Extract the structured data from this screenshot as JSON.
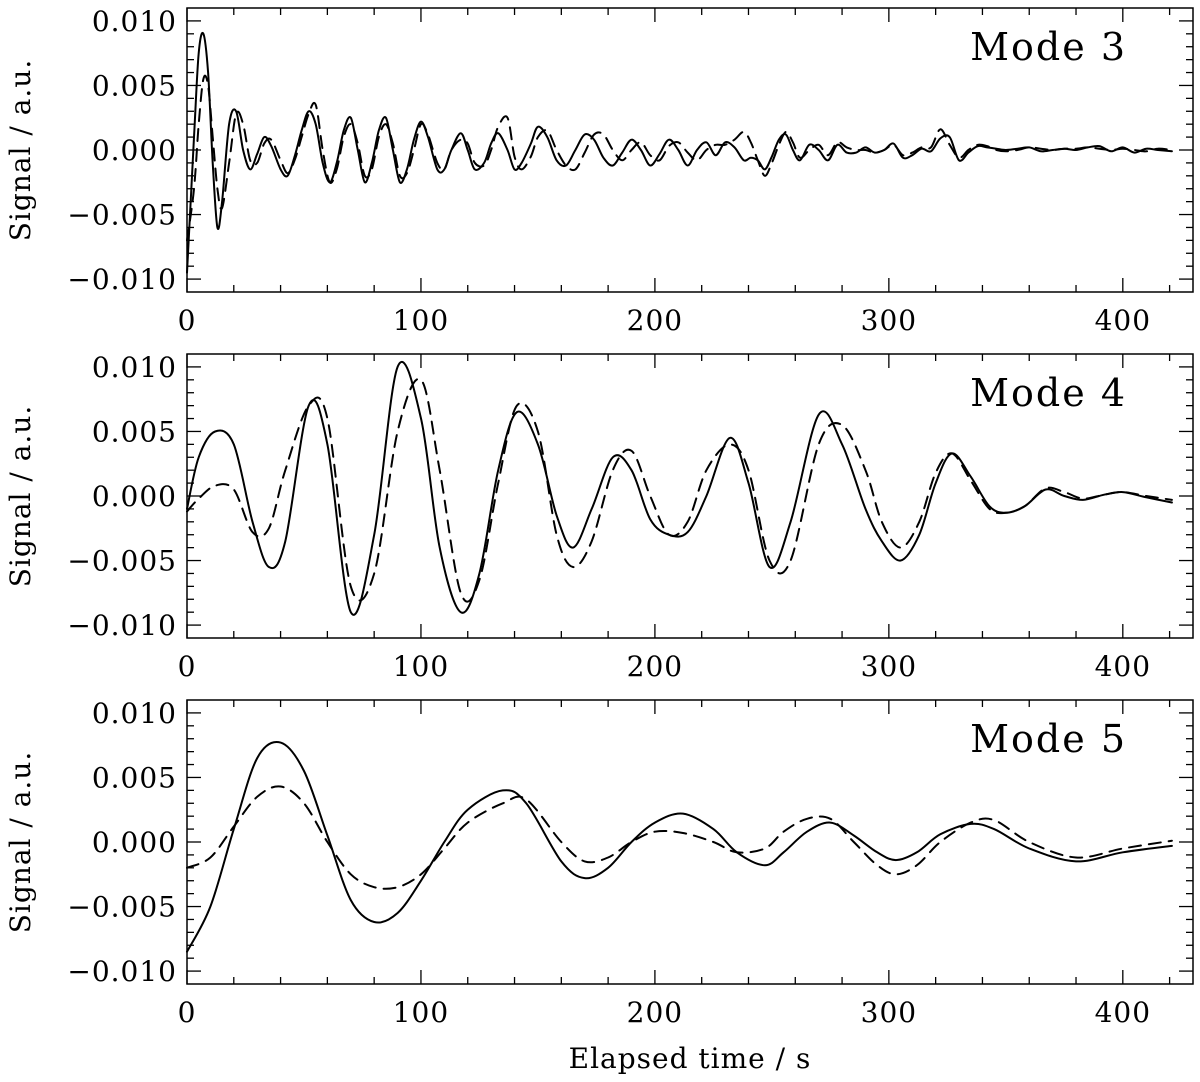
{
  "chart_data": [
    {
      "type": "line",
      "annotation": "Mode 3",
      "xlabel": "",
      "ylabel": "Signal / a.u.",
      "xlim": [
        0,
        430
      ],
      "ylim": [
        -0.011,
        0.011
      ],
      "x_ticks": [
        0,
        100,
        200,
        300,
        400
      ],
      "x_tick_labels": [
        "0",
        "100",
        "200",
        "300",
        "400"
      ],
      "y_ticks": [
        0.01,
        0.005,
        0.0,
        -0.005,
        -0.01
      ],
      "y_tick_labels": [
        "0.010",
        "0.005",
        "0.000",
        "−0.005",
        "−0.010"
      ],
      "series": [
        {
          "style": "solid",
          "x": [
            0,
            3,
            5,
            7,
            9,
            11,
            13,
            15,
            18,
            21,
            24,
            27,
            30,
            33,
            36,
            40,
            43,
            46,
            49,
            52,
            55,
            58,
            61,
            64,
            67,
            70,
            73,
            76,
            79,
            82,
            85,
            88,
            91,
            94,
            97,
            100,
            103,
            107,
            110,
            113,
            117,
            120,
            123,
            127,
            130,
            133,
            137,
            140,
            143,
            147,
            150,
            154,
            158,
            162,
            166,
            170,
            174,
            178,
            182,
            186,
            190,
            194,
            198,
            202,
            206,
            210,
            214,
            218,
            222,
            226,
            230,
            234,
            238,
            241,
            244,
            247,
            250,
            253,
            256,
            259,
            262,
            266,
            270,
            274,
            278,
            282,
            286,
            290,
            294,
            298,
            302,
            306,
            310,
            314,
            318,
            322,
            326,
            330,
            334,
            338,
            342,
            346,
            350,
            355,
            360,
            365,
            370,
            375,
            380,
            385,
            390,
            395,
            400,
            405,
            410,
            415,
            421
          ],
          "y": [
            -0.0095,
            0.001,
            0.0075,
            0.009,
            0.006,
            -0.001,
            -0.006,
            -0.004,
            0.002,
            0.003,
            0.0,
            -0.0015,
            -0.0003,
            0.001,
            0.0003,
            -0.0015,
            -0.002,
            -0.0005,
            0.0015,
            0.003,
            0.002,
            -0.001,
            -0.0025,
            -0.001,
            0.0015,
            0.0025,
            0.0,
            -0.0025,
            -0.001,
            0.0015,
            0.0025,
            0.0,
            -0.0025,
            -0.0015,
            0.0008,
            0.0022,
            0.001,
            -0.0015,
            -0.0015,
            0.0,
            0.0013,
            0.0,
            -0.0015,
            -0.001,
            0.0005,
            0.0013,
            0.0,
            -0.0015,
            -0.001,
            0.0005,
            0.0018,
            0.001,
            -0.0008,
            -0.0012,
            0.0,
            0.0012,
            0.0008,
            -0.0006,
            -0.0012,
            -0.0002,
            0.0008,
            0.0,
            -0.0012,
            -0.0003,
            0.0008,
            0.0,
            -0.0012,
            0.0,
            0.0006,
            -0.0004,
            0.0006,
            0.0002,
            -0.0008,
            -0.0006,
            -0.0008,
            -0.0015,
            -0.0005,
            0.0008,
            0.0012,
            0.0,
            -0.0008,
            0.0004,
            0.0,
            -0.0008,
            0.0004,
            -0.0002,
            -0.0002,
            0.0002,
            -0.0002,
            0.0,
            0.0005,
            -0.0006,
            -0.0004,
            0.0001,
            -0.0001,
            0.0009,
            0.001,
            -0.0008,
            -0.0002,
            0.0003,
            0.0002,
            0.0001,
            0.0,
            0.0001,
            0.0002,
            -0.0001,
            0.0,
            0.0001,
            0.0,
            0.0002,
            0.0003,
            -0.0001,
            0.0002,
            -0.0002,
            0.0001,
            0.0,
            -0.0001
          ]
        },
        {
          "style": "dashed",
          "x": [
            0,
            3,
            5,
            7,
            9,
            11,
            13,
            15,
            18,
            21,
            24,
            27,
            30,
            33,
            36,
            40,
            43,
            46,
            49,
            52,
            55,
            58,
            61,
            64,
            67,
            70,
            73,
            76,
            79,
            82,
            85,
            88,
            91,
            94,
            97,
            100,
            103,
            107,
            110,
            113,
            117,
            120,
            123,
            127,
            130,
            133,
            137,
            140,
            143,
            147,
            150,
            154,
            158,
            162,
            166,
            170,
            174,
            178,
            182,
            186,
            190,
            194,
            198,
            202,
            206,
            210,
            214,
            218,
            222,
            226,
            230,
            234,
            238,
            241,
            244,
            247,
            250,
            253,
            256,
            259,
            262,
            266,
            270,
            274,
            278,
            282,
            286,
            290,
            294,
            298,
            302,
            306,
            310,
            314,
            318,
            322,
            326,
            330,
            334,
            338,
            342,
            346,
            350,
            355,
            360,
            365,
            370,
            375,
            380,
            385,
            390,
            395,
            400,
            405,
            410,
            415,
            421
          ],
          "y": [
            -0.007,
            -0.003,
            0.002,
            0.0055,
            0.005,
            0.001,
            -0.003,
            -0.0045,
            -0.001,
            0.0028,
            0.002,
            -0.0008,
            -0.001,
            0.0005,
            0.0008,
            -0.0008,
            -0.0018,
            -0.0008,
            0.001,
            0.0028,
            0.0035,
            0.0,
            -0.0025,
            -0.0015,
            0.001,
            0.002,
            0.0005,
            -0.002,
            -0.0015,
            0.001,
            0.002,
            0.0005,
            -0.002,
            -0.0018,
            0.0,
            0.002,
            0.0012,
            -0.001,
            -0.0015,
            0.0,
            0.0008,
            0.0005,
            -0.001,
            -0.0012,
            0.0,
            0.0018,
            0.0025,
            -0.0005,
            -0.0015,
            -0.0005,
            0.001,
            0.0015,
            0.0,
            -0.0012,
            -0.0015,
            -0.0002,
            0.0012,
            0.0012,
            0.0,
            -0.0008,
            0.0,
            0.0006,
            -0.0004,
            -0.0008,
            0.0003,
            0.0006,
            -0.0002,
            -0.0008,
            0.0,
            0.0004,
            0.0004,
            0.0008,
            0.0014,
            0.0006,
            -0.0008,
            -0.002,
            -0.001,
            0.0004,
            0.0014,
            0.0006,
            -0.0006,
            0.0,
            0.0004,
            -0.0004,
            0.0006,
            0.0002,
            0.0,
            0.0,
            -0.0002,
            0.0,
            0.0004,
            -0.0004,
            -0.0002,
            0.0002,
            0.0002,
            0.0016,
            0.0004,
            -0.0006,
            0.0,
            0.0004,
            0.0003,
            0.0,
            -0.0001,
            0.0,
            0.0002,
            0.0001,
            0.0,
            0.0001,
            0.0001,
            0.0002,
            0.0001,
            0.0,
            0.0001,
            0.0,
            -0.0001,
            0.0001,
            0.0
          ]
        }
      ]
    },
    {
      "type": "line",
      "annotation": "Mode 4",
      "xlabel": "",
      "ylabel": "Signal / a.u.",
      "xlim": [
        0,
        430
      ],
      "ylim": [
        -0.011,
        0.011
      ],
      "x_ticks": [
        0,
        100,
        200,
        300,
        400
      ],
      "x_tick_labels": [
        "0",
        "100",
        "200",
        "300",
        "400"
      ],
      "y_ticks": [
        0.01,
        0.005,
        0.0,
        -0.005,
        -0.01
      ],
      "y_tick_labels": [
        "0.010",
        "0.005",
        "0.000",
        "−0.005",
        "−0.010"
      ],
      "series": [
        {
          "style": "solid",
          "x": [
            0,
            5,
            12,
            20,
            28,
            35,
            42,
            52,
            60,
            70,
            80,
            90,
            100,
            108,
            117,
            125,
            133,
            141,
            150,
            158,
            165,
            173,
            182,
            190,
            198,
            206,
            214,
            222,
            232,
            240,
            249,
            258,
            270,
            280,
            290,
            297,
            305,
            313,
            320,
            327,
            335,
            343,
            350,
            358,
            367,
            375,
            383,
            392,
            400,
            410,
            421
          ],
          "y": [
            -0.001,
            0.003,
            0.005,
            0.004,
            -0.002,
            -0.0055,
            -0.0035,
            0.007,
            0.004,
            -0.009,
            -0.003,
            0.01,
            0.006,
            -0.004,
            -0.009,
            -0.006,
            0.002,
            0.0065,
            0.004,
            -0.0015,
            -0.004,
            -0.001,
            0.003,
            0.002,
            -0.0018,
            -0.003,
            -0.0028,
            0.0,
            0.0045,
            0.001,
            -0.0055,
            -0.002,
            0.0063,
            0.004,
            -0.001,
            -0.0035,
            -0.005,
            -0.003,
            0.001,
            0.0033,
            0.0015,
            -0.0008,
            -0.0013,
            -0.0008,
            0.0005,
            0.0,
            -0.0003,
            0.0001,
            0.0003,
            -0.0001,
            -0.0005
          ]
        },
        {
          "style": "dashed",
          "x": [
            0,
            5,
            12,
            20,
            28,
            35,
            42,
            52,
            60,
            70,
            80,
            90,
            100,
            108,
            117,
            125,
            133,
            141,
            150,
            158,
            165,
            173,
            182,
            190,
            198,
            206,
            214,
            222,
            232,
            240,
            249,
            258,
            270,
            280,
            290,
            297,
            305,
            313,
            320,
            327,
            335,
            343,
            350,
            358,
            367,
            375,
            383,
            392,
            400,
            410,
            421
          ],
          "y": [
            -0.0012,
            -0.0002,
            0.0008,
            0.0005,
            -0.0028,
            -0.0025,
            0.002,
            0.007,
            0.006,
            -0.007,
            -0.006,
            0.005,
            0.009,
            0.002,
            -0.0075,
            -0.0065,
            0.001,
            0.007,
            0.005,
            -0.003,
            -0.0055,
            -0.0035,
            0.002,
            0.0035,
            0.0,
            -0.003,
            -0.002,
            0.002,
            0.004,
            0.002,
            -0.005,
            -0.005,
            0.004,
            0.0055,
            0.002,
            -0.002,
            -0.004,
            -0.002,
            0.0018,
            0.0033,
            0.0012,
            -0.001,
            -0.0013,
            -0.0008,
            0.0006,
            0.0003,
            -0.0002,
            0.0001,
            0.0003,
            0.0,
            -0.0003
          ]
        }
      ]
    },
    {
      "type": "line",
      "annotation": "Mode 5",
      "xlabel": "Elapsed time / s",
      "ylabel": "Signal / a.u.",
      "xlim": [
        0,
        430
      ],
      "ylim": [
        -0.011,
        0.011
      ],
      "x_ticks": [
        0,
        100,
        200,
        300,
        400
      ],
      "x_tick_labels": [
        "0",
        "100",
        "200",
        "300",
        "400"
      ],
      "y_ticks": [
        0.01,
        0.005,
        0.0,
        -0.005,
        -0.01
      ],
      "y_tick_labels": [
        "0.010",
        "0.005",
        "0.000",
        "−0.005",
        "−0.010"
      ],
      "series": [
        {
          "style": "solid",
          "x": [
            0,
            10,
            20,
            30,
            40,
            50,
            60,
            70,
            80,
            90,
            100,
            110,
            120,
            135,
            145,
            160,
            170,
            180,
            190,
            200,
            212,
            225,
            235,
            247,
            255,
            265,
            275,
            285,
            295,
            303,
            312,
            322,
            335,
            345,
            360,
            380,
            400,
            421
          ],
          "y": [
            -0.0085,
            -0.005,
            0.001,
            0.0065,
            0.0077,
            0.0055,
            0.0005,
            -0.0045,
            -0.0062,
            -0.0055,
            -0.003,
            0.0,
            0.0025,
            0.004,
            0.003,
            -0.0015,
            -0.0028,
            -0.002,
            0.0,
            0.0015,
            0.0022,
            0.001,
            -0.0008,
            -0.0018,
            -0.0008,
            0.0008,
            0.0015,
            0.0005,
            -0.0008,
            -0.0014,
            -0.0008,
            0.0006,
            0.0014,
            0.001,
            -0.0005,
            -0.0015,
            -0.0008,
            -0.0003
          ]
        },
        {
          "style": "dashed",
          "x": [
            0,
            10,
            20,
            30,
            40,
            50,
            60,
            70,
            80,
            90,
            100,
            110,
            120,
            135,
            145,
            160,
            170,
            180,
            190,
            200,
            212,
            225,
            235,
            247,
            255,
            265,
            275,
            285,
            295,
            303,
            312,
            322,
            335,
            345,
            360,
            380,
            400,
            421
          ],
          "y": [
            -0.002,
            -0.0012,
            0.0012,
            0.0035,
            0.0043,
            0.003,
            0.0,
            -0.0025,
            -0.0035,
            -0.0035,
            -0.0025,
            -0.0005,
            0.0015,
            0.003,
            0.0033,
            0.0,
            -0.0015,
            -0.0012,
            0.0,
            0.0008,
            0.0007,
            0.0,
            -0.0008,
            -0.0005,
            0.0008,
            0.0018,
            0.0018,
            0.0,
            -0.0018,
            -0.0025,
            -0.0018,
            0.0,
            0.0015,
            0.0017,
            0.0,
            -0.0012,
            -0.0005,
            0.0001
          ]
        }
      ]
    }
  ]
}
